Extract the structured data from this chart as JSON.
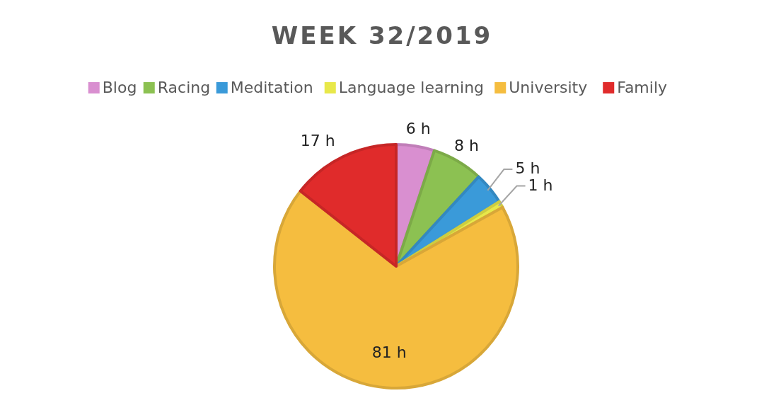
{
  "chart_data": {
    "type": "pie",
    "title": "WEEK 32/2019",
    "categories": [
      "Blog",
      "Racing",
      "Meditation",
      "Language learning",
      "University",
      "Family"
    ],
    "values": [
      6,
      8,
      5,
      1,
      81,
      17
    ],
    "colors": [
      "#d98fd0",
      "#8cc152",
      "#3a9ad9",
      "#e8e84a",
      "#f5bd3f",
      "#e02b2b"
    ],
    "value_labels": [
      "6 h",
      "8 h",
      "5 h",
      "1 h",
      "81 h",
      "17 h"
    ],
    "legend": "top"
  }
}
